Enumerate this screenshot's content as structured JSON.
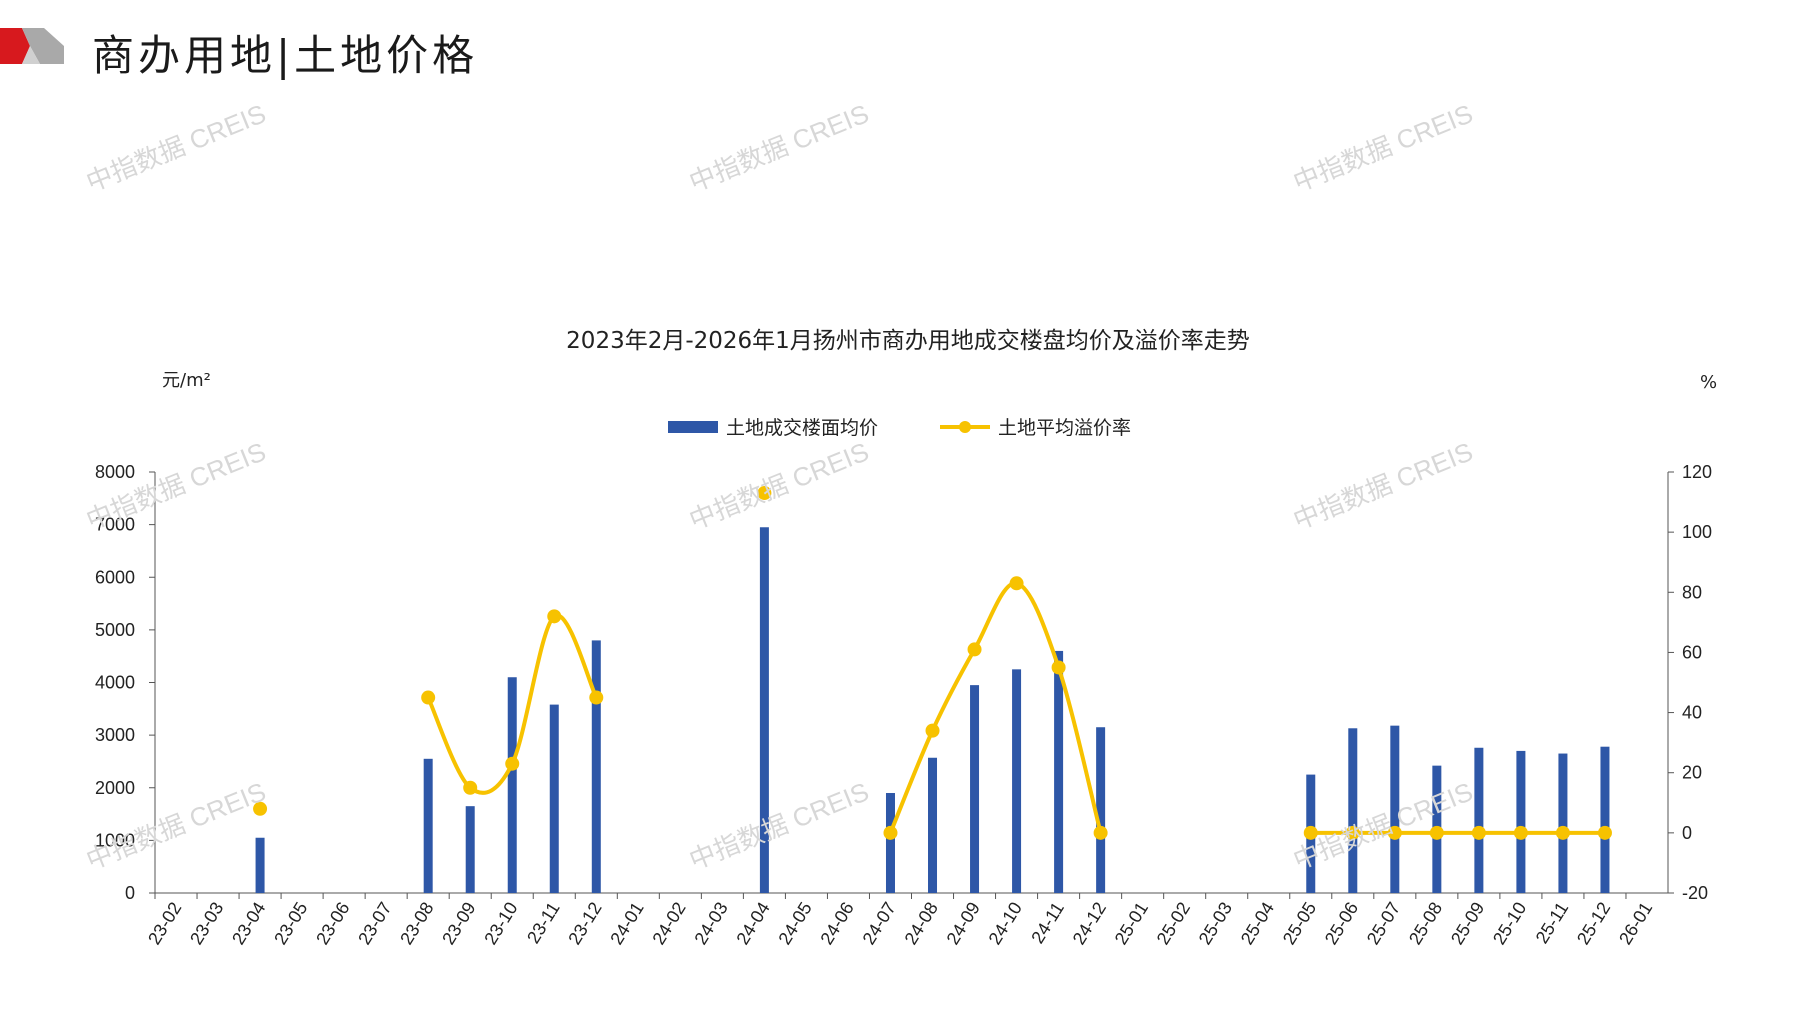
{
  "header": {
    "title": "商办用地|土地价格"
  },
  "watermark": {
    "text": "中指数据 CREIS"
  },
  "colors": {
    "bar": "#2E57A7",
    "line": "#F7C200",
    "logo_red": "#D7191E",
    "logo_gray": "#A9A9A9"
  },
  "chart_data": {
    "type": "bar",
    "title": "2023年2月-2026年1月扬州市商办用地成交楼盘均价及溢价率走势",
    "ylabel": "元/m²",
    "y2label": "%",
    "ylim": [
      0,
      8000
    ],
    "y2lim": [
      -20,
      120
    ],
    "yticks": [
      "0",
      "1000",
      "2000",
      "3000",
      "4000",
      "5000",
      "6000",
      "7000",
      "8000"
    ],
    "y2ticks": [
      "-20",
      "0",
      "20",
      "40",
      "60",
      "80",
      "100",
      "120"
    ],
    "legend": {
      "position": "top-center"
    },
    "categories": [
      "23-02",
      "23-03",
      "23-04",
      "23-05",
      "23-06",
      "23-07",
      "23-08",
      "23-09",
      "23-10",
      "23-11",
      "23-12",
      "24-01",
      "24-02",
      "24-03",
      "24-04",
      "24-05",
      "24-06",
      "24-07",
      "24-08",
      "24-09",
      "24-10",
      "24-11",
      "24-12",
      "25-01",
      "25-02",
      "25-03",
      "25-04",
      "25-05",
      "25-06",
      "25-07",
      "25-08",
      "25-09",
      "25-10",
      "25-11",
      "25-12",
      "26-01"
    ],
    "series": [
      {
        "name": "土地成交楼面均价",
        "type": "bar",
        "axis": "left",
        "values": [
          null,
          null,
          1050,
          null,
          null,
          null,
          2550,
          1650,
          4100,
          3580,
          4800,
          null,
          null,
          null,
          6950,
          null,
          null,
          1900,
          2570,
          3950,
          4250,
          4600,
          3150,
          null,
          null,
          null,
          null,
          2250,
          3130,
          3180,
          2420,
          2760,
          2700,
          2650,
          2780,
          null
        ]
      },
      {
        "name": "土地平均溢价率",
        "type": "line",
        "axis": "right",
        "values": [
          null,
          null,
          8,
          null,
          null,
          null,
          45,
          15,
          23,
          72,
          45,
          null,
          null,
          null,
          113,
          null,
          null,
          0,
          34,
          61,
          83,
          55,
          0,
          null,
          null,
          null,
          null,
          0,
          0,
          0,
          0,
          0,
          0,
          0,
          0,
          null
        ]
      }
    ]
  }
}
